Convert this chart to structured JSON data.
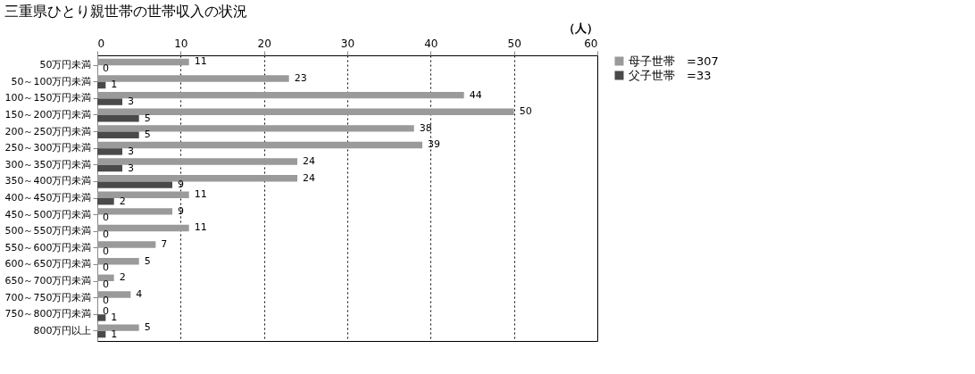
{
  "chart_data": {
    "type": "bar",
    "orientation": "horizontal",
    "title": "三重県ひとり親世帯の世帯収入の状況",
    "xlabel": "（人）",
    "categories": [
      "50万円未満",
      "50～100万円未満",
      "100～150万円未満",
      "150～200万円未満",
      "200～250万円未満",
      "250～300万円未満",
      "300～350万円未満",
      "350～400万円未満",
      "400～450万円未満",
      "450～500万円未満",
      "500～550万円未満",
      "550～600万円未満",
      "600～650万円未満",
      "650～700万円未満",
      "700～750万円未満",
      "750～800万円未満",
      "800万円以上"
    ],
    "series": [
      {
        "name": "母子世帯　=307",
        "color": "#9a9a9a",
        "values": [
          11,
          23,
          44,
          50,
          38,
          39,
          24,
          24,
          11,
          9,
          11,
          7,
          5,
          2,
          4,
          0,
          5
        ]
      },
      {
        "name": "父子世帯　=33",
        "color": "#4a4a4a",
        "values": [
          0,
          1,
          3,
          5,
          5,
          3,
          3,
          9,
          2,
          0,
          0,
          0,
          0,
          0,
          0,
          1,
          1
        ]
      }
    ],
    "xlim": [
      0,
      60
    ],
    "xticks": [
      0,
      10,
      20,
      30,
      40,
      50,
      60
    ],
    "grid": "x",
    "legend": "right",
    "data_labels": true
  }
}
